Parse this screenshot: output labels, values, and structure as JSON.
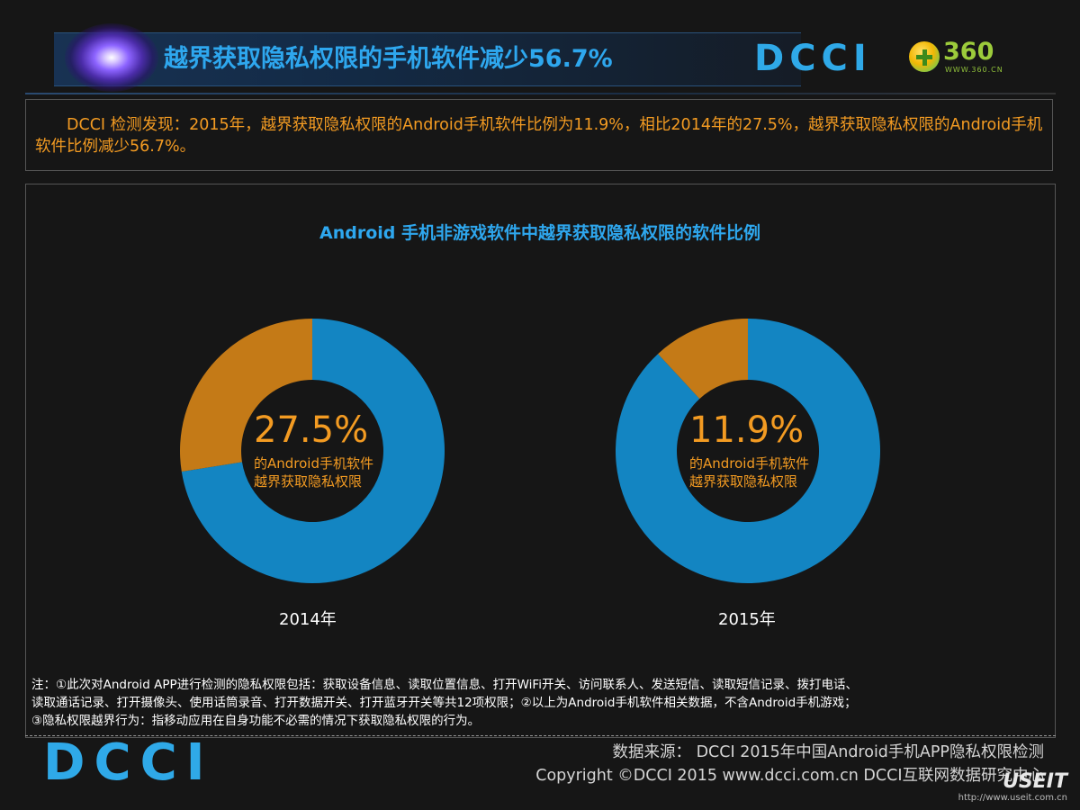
{
  "header": {
    "title": "越界获取隐私权限的手机软件减少56.7%",
    "logo_dcci": "DCCI",
    "logo_360": "360",
    "logo_360_url": "WWW.360.CN"
  },
  "summary": {
    "text": "　　DCCI 检测发现：2015年，越界获取隐私权限的Android手机软件比例为11.9%，相比2014年的27.5%，越界获取隐私权限的Android手机软件比例减少56.7%。"
  },
  "chart_data": {
    "type": "pie",
    "title": "Android 手机非游戏软件中越界获取隐私权限的软件比例",
    "charts": [
      {
        "year": "2014年",
        "value": 27.5,
        "value_label": "27.5%",
        "sub_label_1": "的Android手机软件",
        "sub_label_2": "越界获取隐私权限"
      },
      {
        "year": "2015年",
        "value": 11.9,
        "value_label": "11.9%",
        "sub_label_1": "的Android手机软件",
        "sub_label_2": "越界获取隐私权限"
      }
    ],
    "colors": {
      "highlight": "#c47a17",
      "rest": "#1385c2"
    }
  },
  "note": {
    "line1": "注：①此次对Android APP进行检测的隐私权限包括：获取设备信息、读取位置信息、打开WiFi开关、访问联系人、发送短信、读取短信记录、拨打电话、",
    "line2": "读取通话记录、打开摄像头、使用话筒录音、打开数据开关、打开蓝牙开关等共12项权限；②以上为Android手机软件相关数据，不含Android手机游戏；",
    "line3": "③隐私权限越界行为：指移动应用在自身功能不必需的情况下获取隐私权限的行为。"
  },
  "footer": {
    "logo": "DCCI",
    "source": "数据来源：  DCCI 2015年中国Android手机APP隐私权限检测",
    "copyright": "Copyright ©DCCI 2015    www.dcci.com.cn    DCCI互联网数据研究中心",
    "watermark": "USEIT",
    "watermark_url": "http://www.useit.com.cn"
  }
}
